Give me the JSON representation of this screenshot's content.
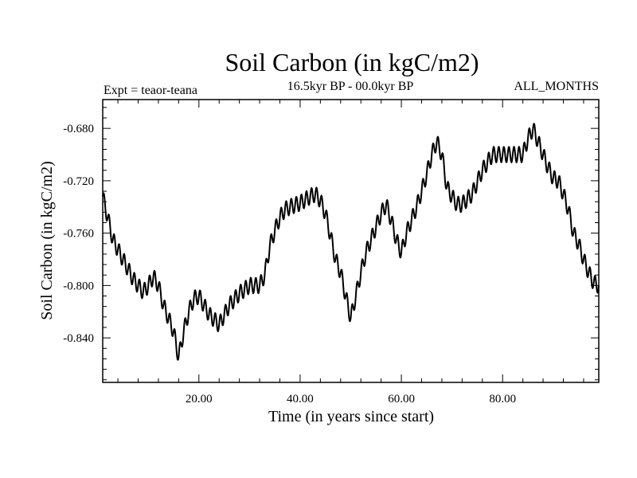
{
  "chart_data": {
    "type": "line",
    "title": "Soil Carbon (in kgC/m2)",
    "left_label": "Expt = teaor-teana",
    "center_label": "16.5kyr BP - 00.0kyr BP",
    "right_label": "ALL_MONTHS",
    "xlabel": "Time (in years since start)",
    "ylabel": "Soil Carbon (in kgC/m2)",
    "xlim": [
      1,
      99
    ],
    "ylim": [
      -0.874,
      -0.658
    ],
    "xticks": [
      20,
      40,
      60,
      80
    ],
    "xtick_labels": [
      "20.00",
      "40.00",
      "60.00",
      "80.00"
    ],
    "yticks": [
      -0.68,
      -0.72,
      -0.76,
      -0.8,
      -0.84
    ],
    "ytick_labels": [
      "-0.680",
      "-0.720",
      "-0.760",
      "-0.800",
      "-0.840"
    ],
    "wiggle_amplitude": 0.006,
    "wiggle_period": 1.0,
    "series": [
      {
        "name": "Soil Carbon",
        "color": "#000000",
        "x": [
          1,
          2,
          3,
          5,
          7,
          9,
          10,
          11,
          12,
          13,
          15,
          16,
          17,
          18,
          19,
          20,
          21,
          22,
          24,
          26,
          28,
          30,
          32,
          33,
          34,
          35,
          36,
          37,
          38,
          40,
          42,
          43,
          44,
          45,
          46,
          47,
          48,
          49,
          50,
          51,
          52,
          53,
          54,
          55,
          56,
          57,
          58,
          59,
          60,
          61,
          62,
          63,
          64,
          65,
          66,
          67,
          68,
          69,
          70,
          71,
          72,
          74,
          76,
          78,
          80,
          82,
          84,
          85,
          86,
          87,
          88,
          89,
          90,
          91,
          92,
          93,
          94,
          95,
          96,
          97,
          98,
          99
        ],
        "y": [
          -0.732,
          -0.748,
          -0.765,
          -0.78,
          -0.795,
          -0.805,
          -0.8,
          -0.793,
          -0.8,
          -0.815,
          -0.835,
          -0.855,
          -0.835,
          -0.82,
          -0.81,
          -0.808,
          -0.815,
          -0.822,
          -0.83,
          -0.815,
          -0.806,
          -0.8,
          -0.8,
          -0.792,
          -0.77,
          -0.758,
          -0.748,
          -0.742,
          -0.74,
          -0.737,
          -0.732,
          -0.73,
          -0.735,
          -0.745,
          -0.762,
          -0.78,
          -0.79,
          -0.808,
          -0.825,
          -0.808,
          -0.79,
          -0.775,
          -0.765,
          -0.755,
          -0.745,
          -0.738,
          -0.75,
          -0.765,
          -0.775,
          -0.76,
          -0.75,
          -0.74,
          -0.728,
          -0.715,
          -0.7,
          -0.69,
          -0.7,
          -0.725,
          -0.732,
          -0.738,
          -0.738,
          -0.73,
          -0.712,
          -0.7,
          -0.7,
          -0.7,
          -0.7,
          -0.688,
          -0.68,
          -0.69,
          -0.7,
          -0.71,
          -0.718,
          -0.72,
          -0.73,
          -0.742,
          -0.76,
          -0.768,
          -0.78,
          -0.79,
          -0.798,
          -0.8
        ]
      }
    ]
  }
}
